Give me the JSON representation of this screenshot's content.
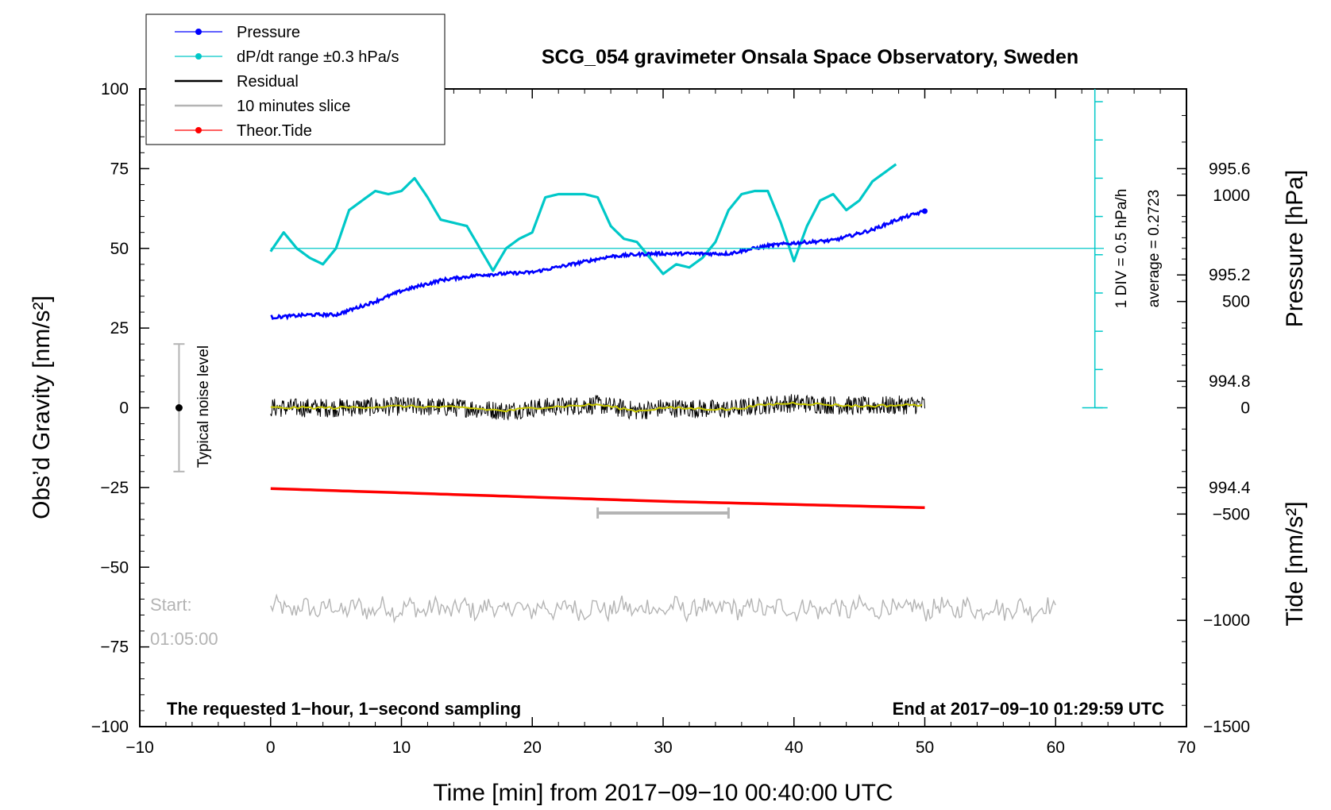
{
  "chart_data": {
    "type": "line",
    "title": "SCG_054 gravimeter Onsala Space Observatory, Sweden",
    "xlabel": "Time [min] from 2017−09−10 00:40:00 UTC",
    "ylabel_left": "Obs’d Gravity [nm/s²]",
    "ylabel_right_pressure": "Pressure [hPa]",
    "ylabel_right_tide": "Tide [nm/s²]",
    "xlim": [
      -10,
      70
    ],
    "ylim": [
      -100,
      100
    ],
    "pressure_ylim": [
      993.5,
      995.9
    ],
    "tide_ylim": [
      -1500,
      1500
    ],
    "x_ticks": [
      -10,
      0,
      10,
      20,
      30,
      40,
      50,
      60,
      70
    ],
    "x_tick_labels": [
      "−10",
      "0",
      "10",
      "20",
      "30",
      "40",
      "50",
      "60",
      "70"
    ],
    "y_ticks": [
      -100,
      -75,
      -50,
      -25,
      0,
      25,
      50,
      75,
      100
    ],
    "y_tick_labels": [
      "−100",
      "−75",
      "−50",
      "−25",
      "0",
      "25",
      "50",
      "75",
      "100"
    ],
    "pressure_ticks": [
      994.4,
      994.8,
      995.2,
      995.6
    ],
    "pressure_tick_labels": [
      "994.4",
      "994.8",
      "995.2",
      "995.6"
    ],
    "tide_ticks": [
      -1500,
      -1000,
      -500,
      0,
      500,
      1000
    ],
    "tide_tick_labels": [
      "−1500",
      "−1000",
      "−500",
      "0",
      "500",
      "1000"
    ],
    "legend": [
      {
        "label": "Pressure",
        "color": "#0000ff",
        "marker": true
      },
      {
        "label": "dP/dt range ±0.3 hPa/s",
        "color": "#00c8c8",
        "marker": true
      },
      {
        "label": "Residual",
        "color": "#000000",
        "marker": false
      },
      {
        "label": "10 minutes slice",
        "color": "#b4b4b4",
        "marker": false
      },
      {
        "label": "Theor.Tide",
        "color": "#ff0000",
        "marker": true
      }
    ],
    "series": [
      {
        "name": "Pressure",
        "units": "hPa",
        "color": "#0000ff",
        "x": [
          0,
          3,
          5,
          8,
          10,
          13,
          16,
          20,
          23,
          26,
          29,
          32,
          35,
          38,
          40,
          43,
          46,
          48,
          50
        ],
        "values": [
          995.04,
          995.05,
          995.05,
          995.1,
          995.14,
          995.18,
          995.2,
          995.21,
          995.24,
          995.27,
          995.28,
          995.28,
          995.28,
          995.31,
          995.32,
          995.33,
          995.37,
          995.41,
          995.44
        ]
      },
      {
        "name": "dP/dt",
        "units": "nm/s² axis",
        "color": "#00c8c8",
        "x": [
          0,
          1,
          2,
          3,
          4,
          5,
          6,
          7,
          8,
          9,
          10,
          11,
          12,
          13,
          14,
          15,
          16,
          17,
          18,
          19,
          20,
          21,
          22,
          23,
          24,
          25,
          26,
          27,
          28,
          29,
          30,
          31,
          32,
          33,
          34,
          35,
          36,
          37,
          38,
          39,
          40,
          41,
          42,
          43,
          44,
          45,
          46,
          47,
          48
        ],
        "values": [
          49,
          55,
          50,
          47,
          45,
          50,
          62,
          65,
          68,
          67,
          68,
          72,
          66,
          59,
          58,
          57,
          50,
          43,
          50,
          53,
          55,
          66,
          67,
          67,
          67,
          66,
          57,
          53,
          52,
          47,
          42,
          45,
          44,
          47,
          52,
          62,
          67,
          68,
          68,
          58,
          46,
          57,
          65,
          67,
          62,
          65,
          71,
          74,
          77
        ]
      },
      {
        "name": "Residual",
        "units": "nm/s²",
        "color": "#000000",
        "x_range": [
          0,
          50
        ],
        "mean": 0,
        "noise_amplitude": 3
      },
      {
        "name": "Residual smoothed",
        "units": "nm/s²",
        "color": "#c8c800",
        "x": [
          0,
          5,
          10,
          15,
          18,
          20,
          25,
          28,
          30,
          35,
          38,
          40,
          45,
          50
        ],
        "values": [
          0,
          0,
          0.5,
          0,
          -1,
          0,
          1,
          -1,
          0,
          -0.5,
          1,
          1.5,
          0.5,
          1
        ]
      },
      {
        "name": "Theor.Tide",
        "units": "nm/s² (tide axis)",
        "color": "#ff0000",
        "x": [
          0,
          10,
          20,
          30,
          40,
          50
        ],
        "values": [
          -380,
          -400,
          -420,
          -440,
          -455,
          -470
        ]
      },
      {
        "name": "10 minutes slice",
        "units": "nm/s²",
        "color": "#b4b4b4",
        "x_range": [
          0,
          60
        ],
        "mean": -63,
        "noise_amplitude": 3
      }
    ],
    "pressure_scale": {
      "label": "1 DIV = 0.5 hPa/h",
      "average_label": "average = 0.2723",
      "x": 63,
      "y_range": [
        0,
        100
      ],
      "div_ticks": [
        0,
        12,
        24,
        36,
        48,
        60,
        72,
        84,
        96
      ]
    },
    "reference_line": {
      "y": 50,
      "color": "#00c8c8"
    },
    "noise_bar": {
      "x": -7,
      "center": 0,
      "half_range": 20,
      "label": "Typical noise level"
    },
    "slice_bar": {
      "x_start": 25,
      "x_end": 35,
      "y": -33
    },
    "start_label_1": "Start:",
    "start_label_2": "01:05:00",
    "annotation_left": "The requested 1−hour, 1−second sampling",
    "annotation_right": "End at 2017−09−10 01:29:59 UTC"
  }
}
